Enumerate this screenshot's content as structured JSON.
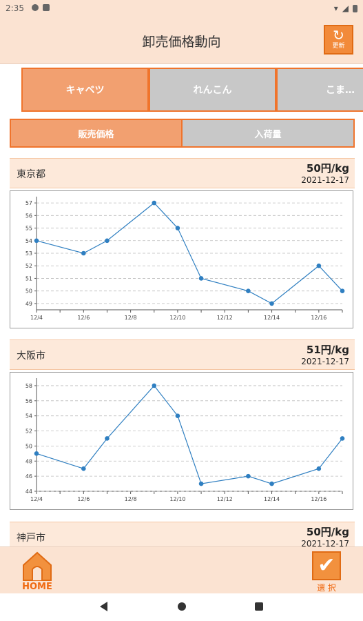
{
  "status_bar": {
    "time": "2:35"
  },
  "header": {
    "title": "卸売価格動向",
    "refresh_label": "更新"
  },
  "vegetable_tabs": [
    {
      "label": "キャベツ",
      "active": true
    },
    {
      "label": "れんこん",
      "active": false
    },
    {
      "label": "こま…",
      "active": false
    }
  ],
  "segments": [
    {
      "label": "販売価格",
      "active": true
    },
    {
      "label": "入荷量",
      "active": false
    }
  ],
  "cards": [
    {
      "city": "東京都",
      "price": "50円/kg",
      "date": "2021-12-17"
    },
    {
      "city": "大阪市",
      "price": "51円/kg",
      "date": "2021-12-17"
    },
    {
      "city": "神戸市",
      "price": "50円/kg",
      "date": "2021-12-17"
    }
  ],
  "bottom_nav": {
    "home_label": "HOME",
    "select_label": "選 択"
  },
  "colors": {
    "accent": "#f28a3a",
    "header_bg": "#fbe3d2",
    "line": "#2f7fc1"
  },
  "chart_data": [
    {
      "type": "line",
      "x": [
        "12/4",
        "12/6",
        "12/7",
        "12/9",
        "12/10",
        "12/11",
        "12/13",
        "12/14",
        "12/16",
        "12/17"
      ],
      "x_index": [
        0,
        2,
        3,
        5,
        6,
        7,
        9,
        10,
        12,
        13
      ],
      "values": [
        54,
        53,
        54,
        57,
        55,
        51,
        50,
        49,
        52,
        50
      ],
      "tick_labels_x": [
        "12/4",
        "12/6",
        "12/8",
        "12/10",
        "12/12",
        "12/14",
        "12/16"
      ],
      "tick_labels_y": [
        49,
        50,
        51,
        52,
        53,
        54,
        55,
        56,
        57
      ],
      "ylim": [
        48.5,
        57.5
      ],
      "grid": true
    },
    {
      "type": "line",
      "x": [
        "12/4",
        "12/6",
        "12/7",
        "12/9",
        "12/10",
        "12/11",
        "12/13",
        "12/14",
        "12/16",
        "12/17"
      ],
      "x_index": [
        0,
        2,
        3,
        5,
        6,
        7,
        9,
        10,
        12,
        13
      ],
      "values": [
        49,
        47,
        51,
        58,
        54,
        45,
        46,
        45,
        47,
        51
      ],
      "tick_labels_x": [
        "12/4",
        "12/6",
        "12/8",
        "12/10",
        "12/12",
        "12/14",
        "12/16"
      ],
      "tick_labels_y": [
        44,
        46,
        48,
        50,
        52,
        54,
        56,
        58
      ],
      "ylim": [
        44,
        59
      ],
      "grid": true
    }
  ]
}
